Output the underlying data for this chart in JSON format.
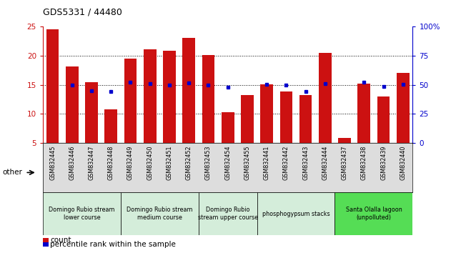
{
  "title": "GDS5331 / 44480",
  "samples": [
    "GSM832445",
    "GSM832446",
    "GSM832447",
    "GSM832448",
    "GSM832449",
    "GSM832450",
    "GSM832451",
    "GSM832452",
    "GSM832453",
    "GSM832454",
    "GSM832455",
    "GSM832441",
    "GSM832442",
    "GSM832443",
    "GSM832444",
    "GSM832437",
    "GSM832438",
    "GSM832439",
    "GSM832440"
  ],
  "counts": [
    24.5,
    18.2,
    15.5,
    10.8,
    19.5,
    21.1,
    20.8,
    23.0,
    20.1,
    10.3,
    13.2,
    15.1,
    13.8,
    13.2,
    20.5,
    5.8,
    15.2,
    13.0,
    17.0
  ],
  "percentile_ranks": [
    null,
    50.0,
    45.0,
    44.0,
    52.0,
    51.0,
    50.0,
    51.5,
    50.0,
    48.0,
    null,
    50.5,
    50.0,
    44.0,
    51.0,
    null,
    52.0,
    48.5,
    50.5
  ],
  "bar_color": "#cc1111",
  "dot_color": "#0000cc",
  "ylim_left": [
    5,
    25
  ],
  "ylim_right": [
    0,
    100
  ],
  "yticks_left": [
    5,
    10,
    15,
    20,
    25
  ],
  "yticks_right": [
    0,
    25,
    50,
    75,
    100
  ],
  "groups": [
    {
      "label": "Domingo Rubio stream\nlower course",
      "start": 0,
      "end": 4,
      "color": "#d4edda"
    },
    {
      "label": "Domingo Rubio stream\nmedium course",
      "start": 4,
      "end": 8,
      "color": "#d4edda"
    },
    {
      "label": "Domingo Rubio\nstream upper course",
      "start": 8,
      "end": 11,
      "color": "#d4edda"
    },
    {
      "label": "phosphogypsum stacks",
      "start": 11,
      "end": 15,
      "color": "#d4edda"
    },
    {
      "label": "Santa Olalla lagoon\n(unpolluted)",
      "start": 15,
      "end": 19,
      "color": "#55dd55"
    }
  ],
  "other_label": "other",
  "legend_count_label": "count",
  "legend_pct_label": "percentile rank within the sample",
  "right_axis_color": "#0000cc",
  "left_axis_color": "#cc1111"
}
